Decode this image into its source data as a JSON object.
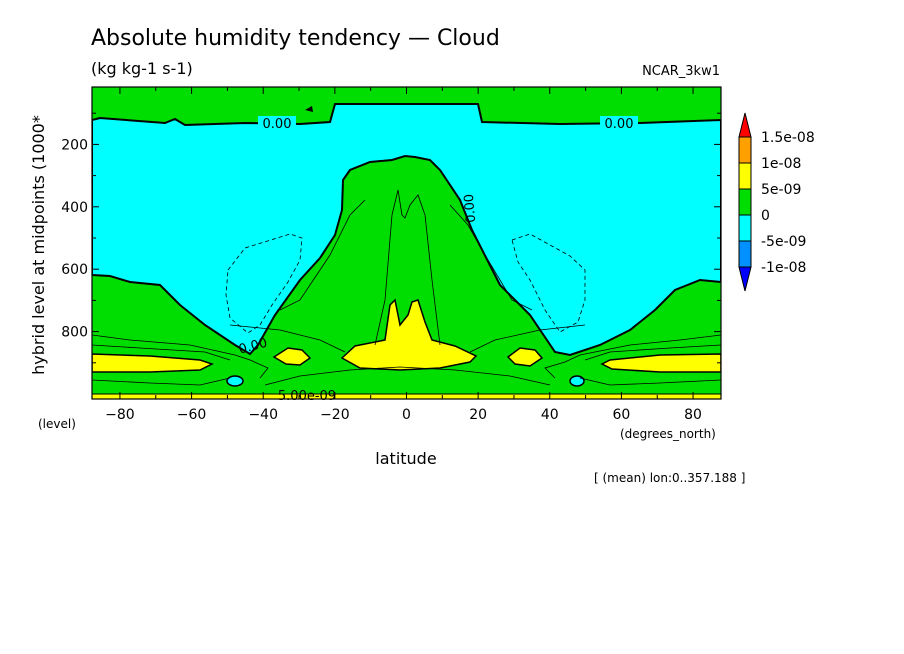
{
  "chart_data": {
    "type": "heatmap",
    "title": "Absolute humidity tendency — Cloud",
    "units": "(kg kg-1 s-1)",
    "dataset": "NCAR_3kw1",
    "xlabel": "latitude",
    "x_units": "(degrees_north)",
    "ylabel": "hybrid level at midpoints (1000*",
    "y_units": "(level)",
    "footnote": "[ (mean) lon:0..357.188 ]",
    "xlim": [
      -87.8,
      87.8
    ],
    "ylim": [
      0,
      1000
    ],
    "y_inverted": true,
    "x_ticks": [
      -80,
      -60,
      -40,
      -20,
      0,
      20,
      40,
      60,
      80
    ],
    "x_tick_labels": [
      "−80",
      "−60",
      "−40",
      "−20",
      "0",
      "20",
      "40",
      "60",
      "80"
    ],
    "y_ticks": [
      200,
      400,
      600,
      800
    ],
    "y_tick_labels": [
      "200",
      "400",
      "600",
      "800"
    ],
    "contour_labels": [
      "0.00",
      "0.00",
      "0.00",
      "0.00",
      "5.00e-09"
    ],
    "colorbar": {
      "levels": [
        "1.5e-08",
        "1e-08",
        "5e-09",
        "0",
        "-5e-09",
        "-1e-08"
      ],
      "colors": [
        "#ff0000",
        "#ffa000",
        "#ffff00",
        "#00dd00",
        "#00ffff",
        "#0090ff",
        "#0000ff"
      ]
    },
    "colors": {
      "negative": "#00ffff",
      "positive_low": "#00dd00",
      "positive_mid": "#ffff00"
    }
  }
}
